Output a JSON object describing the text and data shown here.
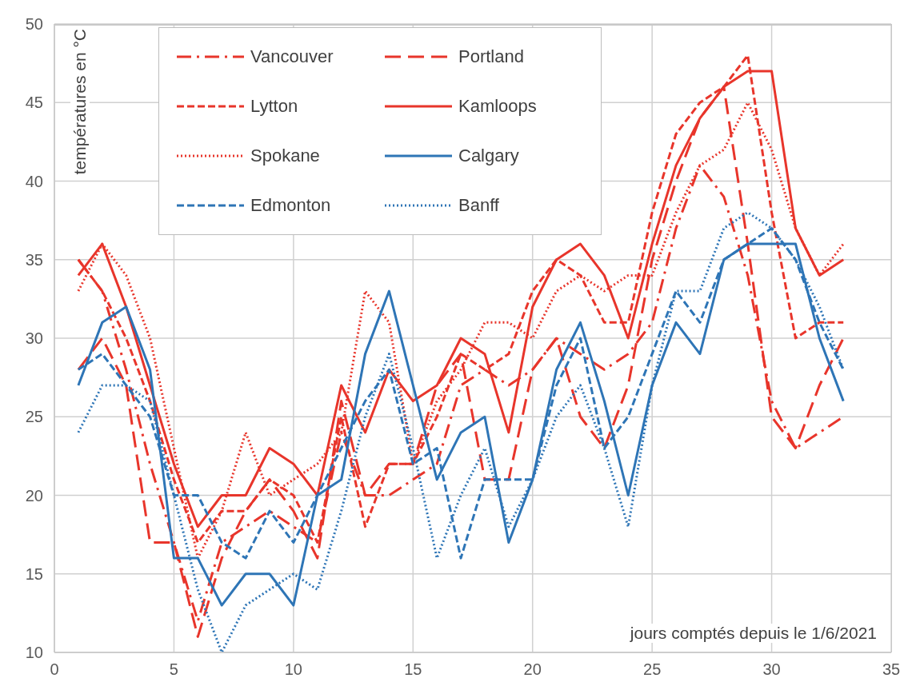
{
  "chart_data": {
    "type": "line",
    "ylabel": "températures en °C",
    "xlabel": "jours comptés depuis le 1/6/2021",
    "x": [
      1,
      2,
      3,
      4,
      5,
      6,
      7,
      8,
      9,
      10,
      11,
      12,
      13,
      14,
      15,
      16,
      17,
      18,
      19,
      20,
      21,
      22,
      23,
      24,
      25,
      26,
      27,
      28,
      29,
      30,
      31,
      32,
      33
    ],
    "xlim": [
      0,
      35
    ],
    "xticks": [
      0,
      5,
      10,
      15,
      20,
      25,
      30,
      35
    ],
    "ylim": [
      10,
      50
    ],
    "yticks": [
      10,
      15,
      20,
      25,
      30,
      35,
      40,
      45,
      50
    ],
    "grid": true,
    "legend": "top left",
    "marker": "none",
    "series": [
      {
        "name": "Vancouver",
        "color": "#e8352b",
        "line_style": "dashdot",
        "values": [
          35,
          33,
          28,
          22,
          17,
          12,
          17,
          18,
          19,
          18,
          17,
          24,
          20,
          20,
          21,
          22,
          27,
          28,
          27,
          28,
          30,
          29,
          28,
          29,
          31,
          37,
          41,
          39,
          34,
          26,
          23,
          24,
          25
        ]
      },
      {
        "name": "Portland",
        "color": "#e8352b",
        "line_style": "longdash",
        "values": [
          28,
          30,
          27,
          17,
          17,
          11,
          16,
          19,
          21,
          19,
          16,
          26,
          20,
          22,
          22,
          27,
          29,
          21,
          21,
          28,
          30,
          25,
          23,
          27,
          35,
          40,
          44,
          46,
          36,
          25,
          23,
          27,
          30
        ]
      },
      {
        "name": "Lytton",
        "color": "#e8352b",
        "line_style": "dashed",
        "values": [
          35,
          33,
          30,
          26,
          21,
          17,
          19,
          19,
          21,
          20,
          17,
          25,
          18,
          22,
          22,
          25,
          29,
          28,
          29,
          33,
          35,
          34,
          31,
          31,
          38,
          43,
          45,
          46,
          48,
          38,
          30,
          31,
          31
        ]
      },
      {
        "name": "Kamloops",
        "color": "#e8352b",
        "line_style": "solid",
        "values": [
          34,
          36,
          32,
          27,
          22,
          18,
          20,
          20,
          23,
          22,
          20,
          27,
          24,
          28,
          26,
          27,
          30,
          29,
          24,
          32,
          35,
          36,
          34,
          30,
          36,
          41,
          44,
          46,
          47,
          47,
          37,
          34,
          35
        ]
      },
      {
        "name": "Spokane",
        "color": "#e8352b",
        "line_style": "dotted",
        "values": [
          33,
          36,
          34,
          30,
          23,
          16,
          19,
          24,
          20,
          21,
          22,
          24,
          33,
          31,
          22,
          26,
          28,
          31,
          31,
          30,
          33,
          34,
          33,
          34,
          34,
          38,
          41,
          42,
          45,
          42,
          37,
          34,
          36
        ]
      },
      {
        "name": "Calgary",
        "color": "#2e75b6",
        "line_style": "solid",
        "values": [
          27,
          31,
          32,
          28,
          16,
          16,
          13,
          15,
          15,
          13,
          20,
          21,
          29,
          33,
          27,
          21,
          24,
          25,
          17,
          21,
          28,
          31,
          26,
          20,
          27,
          31,
          29,
          35,
          36,
          36,
          36,
          30,
          26
        ]
      },
      {
        "name": "Edmonton",
        "color": "#2e75b6",
        "line_style": "dashed",
        "values": [
          28,
          29,
          27,
          25,
          20,
          20,
          17,
          16,
          19,
          17,
          20,
          23,
          26,
          28,
          22,
          23,
          16,
          21,
          21,
          21,
          27,
          30,
          23,
          25,
          29,
          33,
          31,
          35,
          36,
          37,
          35,
          31,
          28
        ]
      },
      {
        "name": "Banff",
        "color": "#2e75b6",
        "line_style": "dotted",
        "values": [
          24,
          27,
          27,
          26,
          20,
          14,
          10,
          13,
          14,
          15,
          14,
          19,
          25,
          29,
          23,
          16,
          20,
          23,
          18,
          21,
          25,
          27,
          23,
          18,
          27,
          33,
          33,
          37,
          38,
          37,
          35,
          32,
          28
        ]
      }
    ]
  }
}
